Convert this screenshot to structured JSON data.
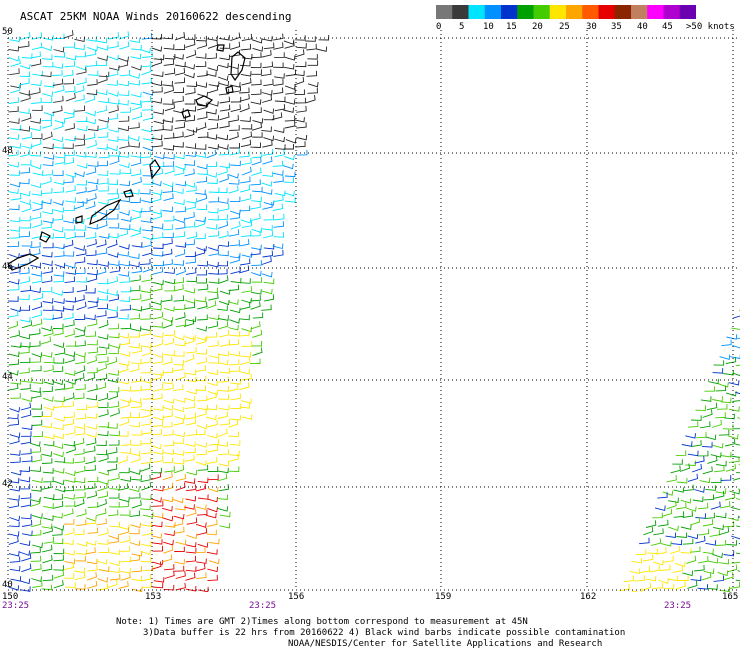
{
  "title": "ASCAT 25KM NOAA Winds 20160622 descending",
  "legend": {
    "labels": [
      "0",
      "5",
      "10",
      "15",
      "20",
      "25",
      "30",
      "35",
      "40",
      "45",
      ">50 knots"
    ],
    "colors": [
      "#777777",
      "#3a3a3a",
      "#00e5ff",
      "#0091ff",
      "#0033cc",
      "#00a000",
      "#44cc00",
      "#ffe600",
      "#ffa500",
      "#ff5a00",
      "#e60000",
      "#8b2500",
      "#c08060",
      "#ff00ff",
      "#b000d0",
      "#6a00b0"
    ]
  },
  "map": {
    "lat_labels": [
      "50",
      "48",
      "46",
      "44",
      "42",
      "40"
    ],
    "lon_labels": [
      "150",
      "153",
      "156",
      "159",
      "162",
      "165"
    ],
    "time_labels": [
      "23:25",
      "23:25",
      "23:25"
    ],
    "lat_range": [
      40,
      50
    ],
    "lon_range": [
      150,
      165
    ]
  },
  "notes": [
    "Note: 1) Times are GMT 2)Times along bottom correspond to measurement at 45N",
    "3)Data buffer is 22 hrs from 20160622 4) Black wind barbs indicate possible contamination",
    "NOAA/NESDIS/Center for Satellite Applications and Research"
  ]
}
